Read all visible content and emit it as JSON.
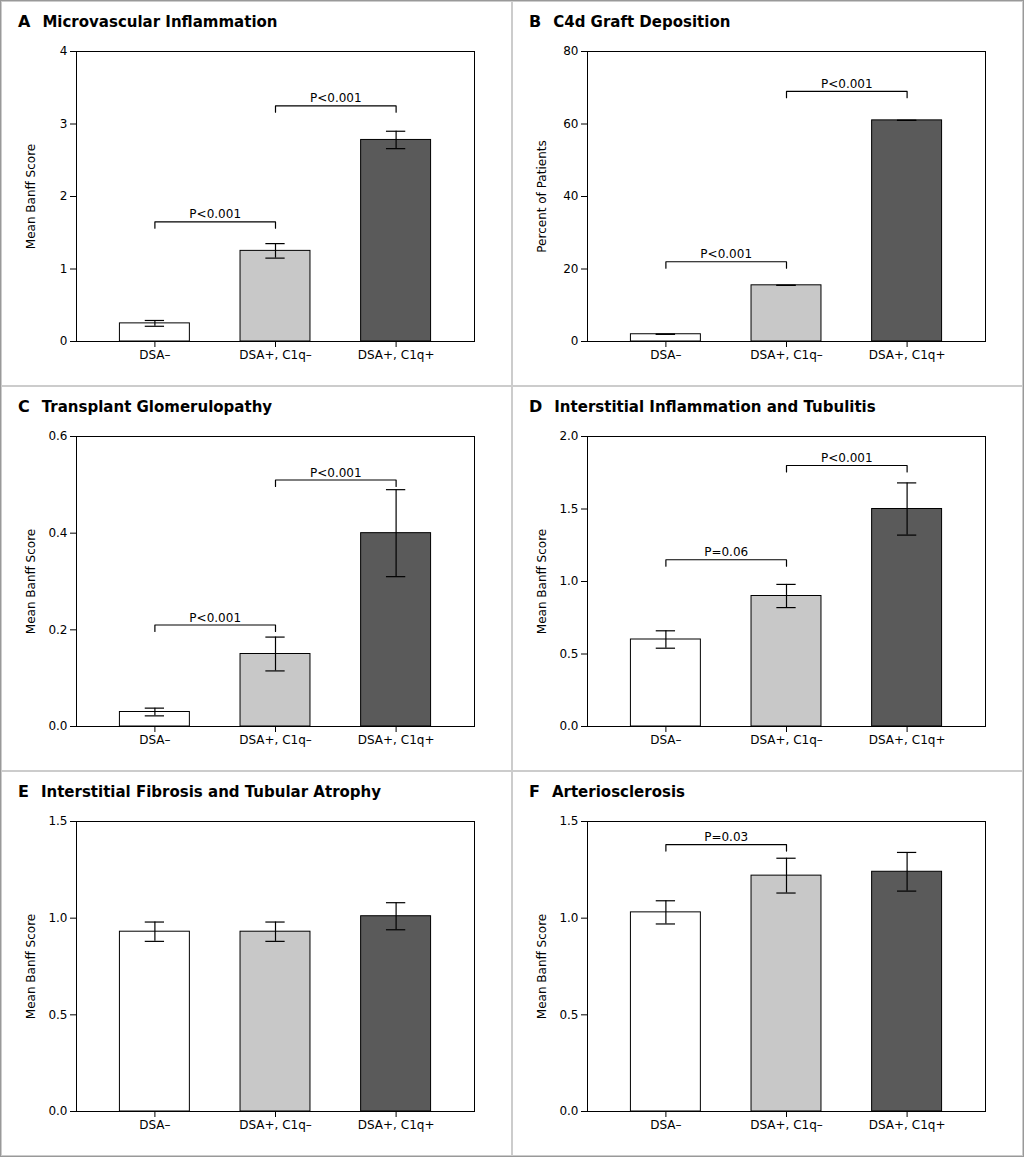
{
  "chart_data": [
    {
      "type": "bar",
      "panel_label": "A",
      "title": "Microvascular Inflammation",
      "ylabel": "Mean Banff Score",
      "categories": [
        "DSA–",
        "DSA+, C1q–",
        "DSA+, C1q+"
      ],
      "values": [
        0.25,
        1.25,
        2.78
      ],
      "errors": [
        0.04,
        0.1,
        0.12
      ],
      "colors": [
        "#ffffff",
        "#c8c8c8",
        "#5a5a5a"
      ],
      "ylim": [
        0,
        4
      ],
      "yticks": [
        0,
        1,
        2,
        3,
        4
      ],
      "grid": false,
      "annotations": [
        {
          "x1": "DSA–",
          "x2": "DSA+, C1q–",
          "y": 1.65,
          "label": "P<0.001"
        },
        {
          "x1": "DSA+, C1q–",
          "x2": "DSA+, C1q+",
          "y": 3.25,
          "label": "P<0.001"
        }
      ]
    },
    {
      "type": "bar",
      "panel_label": "B",
      "title": "C4d Graft Deposition",
      "ylabel": "Percent of Patients",
      "categories": [
        "DSA–",
        "DSA+, C1q–",
        "DSA+, C1q+"
      ],
      "values": [
        2.0,
        15.5,
        61.0
      ],
      "errors": [
        0,
        0,
        0
      ],
      "colors": [
        "#ffffff",
        "#c8c8c8",
        "#5a5a5a"
      ],
      "ylim": [
        0,
        80
      ],
      "yticks": [
        0,
        20,
        40,
        60,
        80
      ],
      "grid": false,
      "annotations": [
        {
          "x1": "DSA–",
          "x2": "DSA+, C1q–",
          "y": 22,
          "label": "P<0.001"
        },
        {
          "x1": "DSA+, C1q–",
          "x2": "DSA+, C1q+",
          "y": 69,
          "label": "P<0.001"
        }
      ]
    },
    {
      "type": "bar",
      "panel_label": "C",
      "title": "Transplant Glomerulopathy",
      "ylabel": "Mean Banff Score",
      "categories": [
        "DSA–",
        "DSA+, C1q–",
        "DSA+, C1q+"
      ],
      "values": [
        0.03,
        0.15,
        0.4
      ],
      "errors": [
        0.008,
        0.035,
        0.09
      ],
      "colors": [
        "#ffffff",
        "#c8c8c8",
        "#5a5a5a"
      ],
      "ylim": [
        0,
        0.6
      ],
      "yticks": [
        {
          "value": 0,
          "label": "0.0"
        },
        0.2,
        0.4,
        0.6
      ],
      "grid": false,
      "annotations": [
        {
          "x1": "DSA–",
          "x2": "DSA+, C1q–",
          "y": 0.21,
          "label": "P<0.001"
        },
        {
          "x1": "DSA+, C1q–",
          "x2": "DSA+, C1q+",
          "y": 0.51,
          "label": "P<0.001"
        }
      ]
    },
    {
      "type": "bar",
      "panel_label": "D",
      "title": "Interstitial Inflammation and Tubulitis",
      "ylabel": "Mean Banff Score",
      "categories": [
        "DSA–",
        "DSA+, C1q–",
        "DSA+, C1q+"
      ],
      "values": [
        0.6,
        0.9,
        1.5
      ],
      "errors": [
        0.06,
        0.08,
        0.18
      ],
      "colors": [
        "#ffffff",
        "#c8c8c8",
        "#5a5a5a"
      ],
      "ylim": [
        0,
        2.0
      ],
      "yticks": [
        {
          "value": 0,
          "label": "0.0"
        },
        0.5,
        {
          "value": 1,
          "label": "1.0"
        },
        1.5,
        {
          "value": 2,
          "label": "2.0"
        }
      ],
      "grid": false,
      "annotations": [
        {
          "x1": "DSA–",
          "x2": "DSA+, C1q–",
          "y": 1.15,
          "label": "P=0.06"
        },
        {
          "x1": "DSA+, C1q–",
          "x2": "DSA+, C1q+",
          "y": 1.8,
          "label": "P<0.001"
        }
      ]
    },
    {
      "type": "bar",
      "panel_label": "E",
      "title": "Interstitial Fibrosis and Tubular Atrophy",
      "ylabel": "Mean Banff Score",
      "categories": [
        "DSA–",
        "DSA+, C1q–",
        "DSA+, C1q+"
      ],
      "values": [
        0.93,
        0.93,
        1.01
      ],
      "errors": [
        0.05,
        0.05,
        0.07
      ],
      "colors": [
        "#ffffff",
        "#c8c8c8",
        "#5a5a5a"
      ],
      "ylim": [
        0,
        1.5
      ],
      "yticks": [
        {
          "value": 0,
          "label": "0.0"
        },
        0.5,
        {
          "value": 1,
          "label": "1.0"
        },
        1.5
      ],
      "grid": false,
      "annotations": []
    },
    {
      "type": "bar",
      "panel_label": "F",
      "title": "Arteriosclerosis",
      "ylabel": "Mean Banff Score",
      "categories": [
        "DSA–",
        "DSA+, C1q–",
        "DSA+, C1q+"
      ],
      "values": [
        1.03,
        1.22,
        1.24
      ],
      "errors": [
        0.06,
        0.09,
        0.1
      ],
      "colors": [
        "#ffffff",
        "#c8c8c8",
        "#5a5a5a"
      ],
      "ylim": [
        0,
        1.5
      ],
      "yticks": [
        {
          "value": 0,
          "label": "0.0"
        },
        0.5,
        {
          "value": 1,
          "label": "1.0"
        },
        1.5
      ],
      "grid": false,
      "annotations": [
        {
          "x1": "DSA–",
          "x2": "DSA+, C1q–",
          "y": 1.38,
          "label": "P=0.03"
        }
      ]
    }
  ]
}
